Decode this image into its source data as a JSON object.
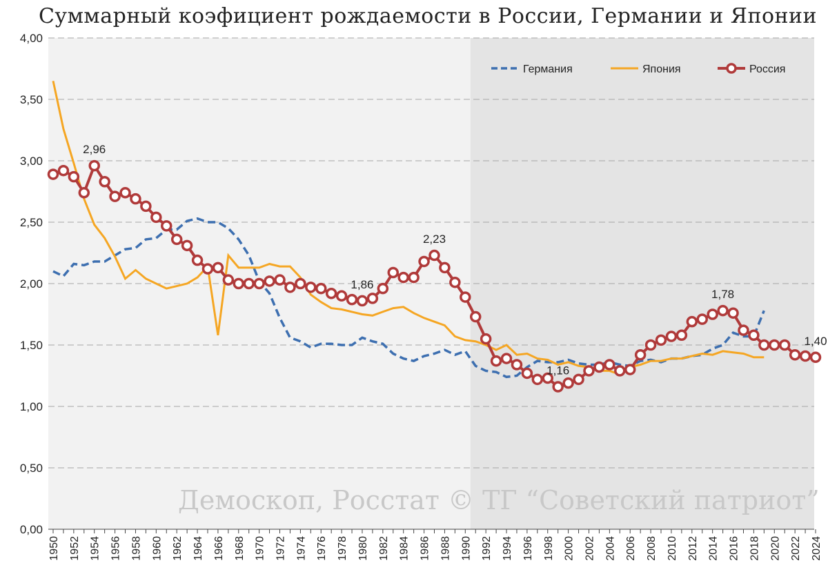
{
  "chart_data": {
    "type": "line",
    "title": "Суммарный коэфициент рождаемости в России, Германии и Японии",
    "xlabel": "",
    "ylabel": "",
    "ylim": [
      0,
      4
    ],
    "xlim": [
      1950,
      2024
    ],
    "y_ticks": [
      "0,00",
      "0,50",
      "1,00",
      "1,50",
      "2,00",
      "2,50",
      "3,00",
      "3,50",
      "4,00"
    ],
    "x_ticks": [
      "1950",
      "1952",
      "1954",
      "1956",
      "1958",
      "1960",
      "1962",
      "1964",
      "1966",
      "1968",
      "1970",
      "1972",
      "1974",
      "1976",
      "1978",
      "1980",
      "1982",
      "1984",
      "1986",
      "1988",
      "1990",
      "1992",
      "1994",
      "1996",
      "1998",
      "2000",
      "2002",
      "2004",
      "2006",
      "2008",
      "2010",
      "2012",
      "2014",
      "2016",
      "2018",
      "2020",
      "2022",
      "2024"
    ],
    "shaded_region_start": 1991,
    "grid": true,
    "legend_position": "top-right",
    "watermark": "Демоскоп, Росстат © ТГ “Советский патриот”",
    "series": [
      {
        "name": "Германия",
        "color": "#3d6fb0",
        "style": "dashed",
        "x": [
          1950,
          1951,
          1952,
          1953,
          1954,
          1955,
          1956,
          1957,
          1958,
          1959,
          1960,
          1961,
          1962,
          1963,
          1964,
          1965,
          1966,
          1967,
          1968,
          1969,
          1970,
          1971,
          1972,
          1973,
          1974,
          1975,
          1976,
          1977,
          1978,
          1979,
          1980,
          1981,
          1982,
          1983,
          1984,
          1985,
          1986,
          1987,
          1988,
          1989,
          1990,
          1991,
          1992,
          1993,
          1994,
          1995,
          1996,
          1997,
          1998,
          1999,
          2000,
          2001,
          2002,
          2003,
          2004,
          2005,
          2006,
          2007,
          2008,
          2009,
          2010,
          2011,
          2012,
          2013,
          2014,
          2015,
          2016,
          2017,
          2018,
          2019
        ],
        "values": [
          2.1,
          2.06,
          2.16,
          2.15,
          2.18,
          2.18,
          2.23,
          2.28,
          2.29,
          2.36,
          2.37,
          2.44,
          2.44,
          2.51,
          2.53,
          2.5,
          2.5,
          2.45,
          2.36,
          2.23,
          2.02,
          1.92,
          1.72,
          1.56,
          1.53,
          1.48,
          1.51,
          1.51,
          1.5,
          1.5,
          1.56,
          1.53,
          1.51,
          1.43,
          1.39,
          1.37,
          1.41,
          1.43,
          1.46,
          1.42,
          1.45,
          1.33,
          1.29,
          1.28,
          1.24,
          1.25,
          1.32,
          1.37,
          1.36,
          1.36,
          1.38,
          1.35,
          1.34,
          1.34,
          1.36,
          1.34,
          1.33,
          1.37,
          1.38,
          1.36,
          1.39,
          1.39,
          1.41,
          1.42,
          1.47,
          1.5,
          1.6,
          1.57,
          1.57,
          1.78
        ]
      },
      {
        "name": "Япония",
        "color": "#f5a623",
        "style": "solid",
        "x": [
          1950,
          1951,
          1952,
          1953,
          1954,
          1955,
          1956,
          1957,
          1958,
          1959,
          1960,
          1961,
          1962,
          1963,
          1964,
          1965,
          1966,
          1967,
          1968,
          1969,
          1970,
          1971,
          1972,
          1973,
          1974,
          1975,
          1976,
          1977,
          1978,
          1979,
          1980,
          1981,
          1982,
          1983,
          1984,
          1985,
          1986,
          1987,
          1988,
          1989,
          1990,
          1991,
          1992,
          1993,
          1994,
          1995,
          1996,
          1997,
          1998,
          1999,
          2000,
          2001,
          2002,
          2003,
          2004,
          2005,
          2006,
          2007,
          2008,
          2009,
          2010,
          2011,
          2012,
          2013,
          2014,
          2015,
          2016,
          2017,
          2018,
          2019
        ],
        "values": [
          3.65,
          3.26,
          2.98,
          2.69,
          2.48,
          2.37,
          2.22,
          2.04,
          2.11,
          2.04,
          2.0,
          1.96,
          1.98,
          2.0,
          2.05,
          2.14,
          1.58,
          2.23,
          2.13,
          2.13,
          2.13,
          2.16,
          2.14,
          2.14,
          2.05,
          1.91,
          1.85,
          1.8,
          1.79,
          1.77,
          1.75,
          1.74,
          1.77,
          1.8,
          1.81,
          1.76,
          1.72,
          1.69,
          1.66,
          1.57,
          1.54,
          1.53,
          1.5,
          1.46,
          1.5,
          1.42,
          1.43,
          1.39,
          1.38,
          1.34,
          1.36,
          1.33,
          1.32,
          1.29,
          1.29,
          1.26,
          1.32,
          1.34,
          1.37,
          1.37,
          1.39,
          1.39,
          1.41,
          1.43,
          1.42,
          1.45,
          1.44,
          1.43,
          1.4,
          1.4
        ]
      },
      {
        "name": "Россия",
        "color": "#b03a3a",
        "style": "solid-markers",
        "x": [
          1950,
          1951,
          1952,
          1953,
          1954,
          1955,
          1956,
          1957,
          1958,
          1959,
          1960,
          1961,
          1962,
          1963,
          1964,
          1965,
          1966,
          1967,
          1968,
          1969,
          1970,
          1971,
          1972,
          1973,
          1974,
          1975,
          1976,
          1977,
          1978,
          1979,
          1980,
          1981,
          1982,
          1983,
          1984,
          1985,
          1986,
          1987,
          1988,
          1989,
          1990,
          1991,
          1992,
          1993,
          1994,
          1995,
          1996,
          1997,
          1998,
          1999,
          2000,
          2001,
          2002,
          2003,
          2004,
          2005,
          2006,
          2007,
          2008,
          2009,
          2010,
          2011,
          2012,
          2013,
          2014,
          2015,
          2016,
          2017,
          2018,
          2019,
          2020,
          2021,
          2022,
          2023,
          2024
        ],
        "values": [
          2.89,
          2.92,
          2.87,
          2.74,
          2.96,
          2.83,
          2.71,
          2.74,
          2.69,
          2.63,
          2.54,
          2.47,
          2.36,
          2.31,
          2.19,
          2.12,
          2.13,
          2.03,
          2.0,
          2.0,
          2.0,
          2.02,
          2.03,
          1.97,
          2.0,
          1.97,
          1.96,
          1.92,
          1.9,
          1.87,
          1.86,
          1.88,
          1.96,
          2.09,
          2.05,
          2.05,
          2.18,
          2.23,
          2.13,
          2.01,
          1.89,
          1.73,
          1.55,
          1.37,
          1.39,
          1.34,
          1.27,
          1.22,
          1.23,
          1.16,
          1.19,
          1.22,
          1.29,
          1.32,
          1.34,
          1.29,
          1.3,
          1.42,
          1.5,
          1.54,
          1.57,
          1.58,
          1.69,
          1.71,
          1.75,
          1.78,
          1.76,
          1.62,
          1.58,
          1.5,
          1.5,
          1.5,
          1.42,
          1.41,
          1.4
        ]
      }
    ],
    "annotations": [
      {
        "x": 1954,
        "y": 2.96,
        "text": "2,96"
      },
      {
        "x": 1980,
        "y": 1.86,
        "text": "1,86"
      },
      {
        "x": 1987,
        "y": 2.23,
        "text": "2,23"
      },
      {
        "x": 1999,
        "y": 1.16,
        "text": "1,16"
      },
      {
        "x": 2015,
        "y": 1.78,
        "text": "1,78"
      },
      {
        "x": 2024,
        "y": 1.4,
        "text": "1,40"
      }
    ]
  }
}
